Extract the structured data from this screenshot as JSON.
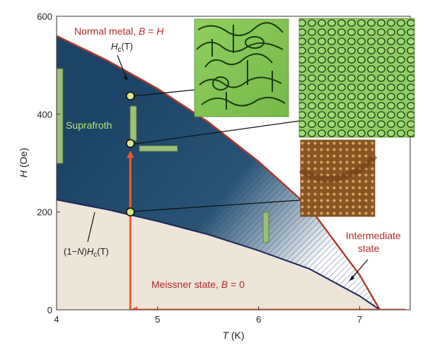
{
  "colors": {
    "meissner_bg": "#ede5d8",
    "intermediate_dark": "#1c4466",
    "normal_line": "#b0392b",
    "lower_line": "#1e2558",
    "path_orange": "#f25a2c",
    "marker_fill": "#d8e98a",
    "label_red": "#b02a2a",
    "label_green": "#b9e37a"
  },
  "chart_data": {
    "type": "line",
    "xlabel_T": "T",
    "xlabel_unit": " (K)",
    "ylabel_H": "H",
    "ylabel_unit": " (Oe)",
    "xlim": [
      4,
      7.5
    ],
    "ylim": [
      0,
      600
    ],
    "x_ticks": [
      "4",
      "5",
      "6",
      "7"
    ],
    "y_ticks": [
      "0",
      "200",
      "400",
      "600"
    ],
    "series": [
      {
        "key": "hc",
        "x": [
          4.0,
          4.5,
          5.0,
          5.5,
          6.0,
          6.5,
          7.0,
          7.2
        ],
        "y": [
          560,
          510,
          452,
          384,
          303,
          210,
          71,
          0
        ]
      },
      {
        "key": "lower",
        "x": [
          4.0,
          4.5,
          5.0,
          5.5,
          6.0,
          6.5,
          7.0,
          7.2
        ],
        "y": [
          225,
          205,
          181,
          154,
          121,
          84,
          28,
          0
        ]
      }
    ],
    "path_points": [
      {
        "x": 4.73,
        "y": 0
      },
      {
        "x": 4.73,
        "y": 325
      },
      {
        "x": 7.45,
        "y": 0
      }
    ],
    "markers": [
      {
        "x": 4.73,
        "y": 437
      },
      {
        "x": 4.73,
        "y": 340
      },
      {
        "x": 4.73,
        "y": 200
      }
    ],
    "labels": {
      "normal_prefix": "Normal metal, ",
      "normal_b": "B",
      "normal_eq": " = ",
      "normal_h": "H",
      "hc_h": "H",
      "hc_sub": "c",
      "hc_t": "(T)",
      "suprafroth": "Suprafroth",
      "lower_pre": "(1−",
      "lower_n": "N",
      "lower_mid": ")",
      "lower_h": "H",
      "lower_sub": "c",
      "lower_t": "(T)",
      "intermediate_1": "Intermediate",
      "intermediate_2": "state",
      "meissner_prefix": "Meissner state, ",
      "meissner_b": "B",
      "meissner_eq": " = 0"
    }
  }
}
